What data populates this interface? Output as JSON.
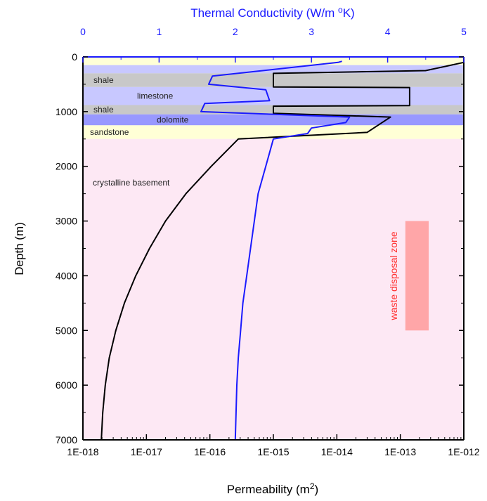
{
  "chart_data": {
    "type": "line",
    "x_bottom": {
      "label": "Permeability (m",
      "label_sup": "2",
      "label_end": ")",
      "scale": "log",
      "range": [
        1e-18,
        1e-12
      ],
      "tick_values": [
        1e-18,
        1e-17,
        1e-16,
        1e-15,
        1e-14,
        1e-13,
        1e-12
      ],
      "tick_labels": [
        "1E-018",
        "1E-017",
        "1E-016",
        "1E-015",
        "1E-014",
        "1E-013",
        "1E-012"
      ]
    },
    "x_top": {
      "label": "Thermal Conductivity (W/m ",
      "label_sup": "o",
      "label_end": "K)",
      "scale": "linear",
      "range": [
        0,
        5
      ],
      "tick_values": [
        0,
        1,
        2,
        3,
        4,
        5
      ],
      "tick_labels": [
        "0",
        "1",
        "2",
        "3",
        "4",
        "5"
      ],
      "color": "#1a1aff"
    },
    "y": {
      "label": "Depth (m)",
      "range": [
        0,
        7000
      ],
      "inverted": true,
      "tick_values": [
        0,
        1000,
        2000,
        3000,
        4000,
        5000,
        6000,
        7000
      ],
      "tick_labels": [
        "0",
        "1000",
        "2000",
        "3000",
        "4000",
        "5000",
        "6000",
        "7000"
      ]
    },
    "bands": [
      {
        "top": 0,
        "bottom": 150,
        "color": "#ffffd6",
        "label": ""
      },
      {
        "top": 150,
        "bottom": 300,
        "color": "#c8c8ff",
        "label": ""
      },
      {
        "top": 300,
        "bottom": 550,
        "color": "#c8c8c8",
        "label": "shale"
      },
      {
        "top": 550,
        "bottom": 880,
        "color": "#c8c8ff",
        "label": "limestone"
      },
      {
        "top": 880,
        "bottom": 1050,
        "color": "#c8c8c8",
        "label": "shale"
      },
      {
        "top": 1050,
        "bottom": 1250,
        "color": "#9898ff",
        "label": "dolomite"
      },
      {
        "top": 1250,
        "bottom": 1500,
        "color": "#ffffd6",
        "label": "sandstone"
      },
      {
        "top": 1500,
        "bottom": 7000,
        "color": "#fde8f4",
        "label": "crystalline basement"
      }
    ],
    "series": [
      {
        "axis": "bottom",
        "color": "#000000",
        "points": [
          [
            1e-12,
            100
          ],
          [
            2.5e-13,
            250
          ],
          [
            1e-15,
            300
          ],
          [
            1e-15,
            550
          ],
          [
            1.4e-13,
            560
          ],
          [
            1.4e-13,
            890
          ],
          [
            1e-15,
            900
          ],
          [
            1e-15,
            1030
          ],
          [
            7e-14,
            1100
          ],
          [
            3e-14,
            1380
          ],
          [
            2.8e-16,
            1500
          ],
          [
            1.05e-16,
            2000
          ],
          [
            4.2e-17,
            2500
          ],
          [
            2e-17,
            3000
          ],
          [
            1.12e-17,
            3500
          ],
          [
            6.8e-18,
            4000
          ],
          [
            4.5e-18,
            4500
          ],
          [
            3.3e-18,
            5000
          ],
          [
            2.6e-18,
            5500
          ],
          [
            2.25e-18,
            6000
          ],
          [
            2.05e-18,
            6500
          ],
          [
            1.95e-18,
            7000
          ]
        ]
      },
      {
        "axis": "top",
        "color": "#1a1aff",
        "points": [
          [
            3.4,
            80
          ],
          [
            3.35,
            100
          ],
          [
            1.7,
            350
          ],
          [
            1.65,
            500
          ],
          [
            2.4,
            600
          ],
          [
            2.45,
            800
          ],
          [
            1.6,
            850
          ],
          [
            1.55,
            1000
          ],
          [
            3.5,
            1100
          ],
          [
            3.45,
            1200
          ],
          [
            3.0,
            1300
          ],
          [
            2.95,
            1400
          ],
          [
            2.5,
            1500
          ],
          [
            2.4,
            2000
          ],
          [
            2.3,
            2500
          ],
          [
            2.25,
            3000
          ],
          [
            2.2,
            3500
          ],
          [
            2.15,
            4000
          ],
          [
            2.1,
            4500
          ],
          [
            2.07,
            5000
          ],
          [
            2.04,
            5500
          ],
          [
            2.02,
            6000
          ],
          [
            2.01,
            6500
          ],
          [
            2.0,
            7000
          ]
        ]
      }
    ],
    "annotations": [
      {
        "text": "waste disposal zone",
        "color": "#ff3030",
        "x_range": [
          1.2e-13,
          2.8e-13
        ],
        "y_range": [
          3000,
          5000
        ]
      }
    ]
  }
}
